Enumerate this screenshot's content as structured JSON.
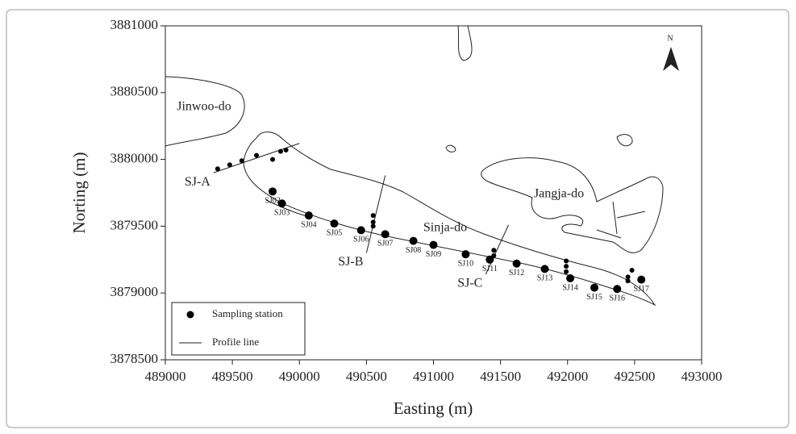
{
  "chart_data": {
    "type": "scatter",
    "x_label": "Easting (m)",
    "y_label": "Norting (m)",
    "xlim": [
      489000,
      493000
    ],
    "ylim": [
      3878500,
      3881000
    ],
    "xticks": [
      489000,
      489500,
      490000,
      490500,
      491000,
      491500,
      492000,
      492500,
      493000
    ],
    "yticks": [
      3878500,
      3879000,
      3879500,
      3880000,
      3880500,
      3881000
    ],
    "series": [
      {
        "name": "Sampling station",
        "color": "#000000",
        "x": [
          489800,
          489870,
          490070,
          490260,
          490460,
          490640,
          490850,
          491000,
          491240,
          491420,
          491620,
          491830,
          492020,
          492200,
          492370,
          492550,
          489390,
          489480,
          489570,
          489680,
          489800,
          489860,
          489900,
          490550,
          490550,
          490550,
          491450,
          491450,
          491990,
          491990,
          491990,
          492480,
          492450,
          492450
        ],
        "y": [
          3879760,
          3879670,
          3879580,
          3879520,
          3879470,
          3879440,
          3879390,
          3879360,
          3879290,
          3879250,
          3879220,
          3879180,
          3879110,
          3879040,
          3879030,
          3879100,
          3879930,
          3879960,
          3879990,
          3880030,
          3880000,
          3880060,
          3880070,
          3879580,
          3879530,
          3879500,
          3879320,
          3879280,
          3879240,
          3879200,
          3879160,
          3879170,
          3879120,
          3879090
        ],
        "labels": [
          "SJ02",
          "SJ03",
          "SJ04",
          "SJ05",
          "SJ06",
          "SJ07",
          "SJ08",
          "SJ09",
          "SJ10",
          "SJ11",
          "SJ12",
          "SJ13",
          "SJ14",
          "SJ15",
          "SJ16",
          "SJ17",
          null,
          null,
          null,
          null,
          null,
          null,
          null,
          null,
          null,
          null,
          null,
          null,
          null,
          null,
          null,
          null,
          null,
          null
        ]
      }
    ],
    "profile_name": "Profile line",
    "profiles": [
      {
        "label": "SJ-A",
        "x": [
          489360,
          490000
        ],
        "y": [
          3879900,
          3880120
        ]
      },
      {
        "label": "SJ-B",
        "x": [
          490500,
          490640
        ],
        "y": [
          3879300,
          3879880
        ]
      },
      {
        "label": "SJ-C",
        "x": [
          491390,
          491560
        ],
        "y": [
          3879140,
          3879510
        ]
      }
    ],
    "islands": [
      "Jinwoo-do",
      "Sinja-do",
      "Jangja-do"
    ],
    "north": "N"
  }
}
